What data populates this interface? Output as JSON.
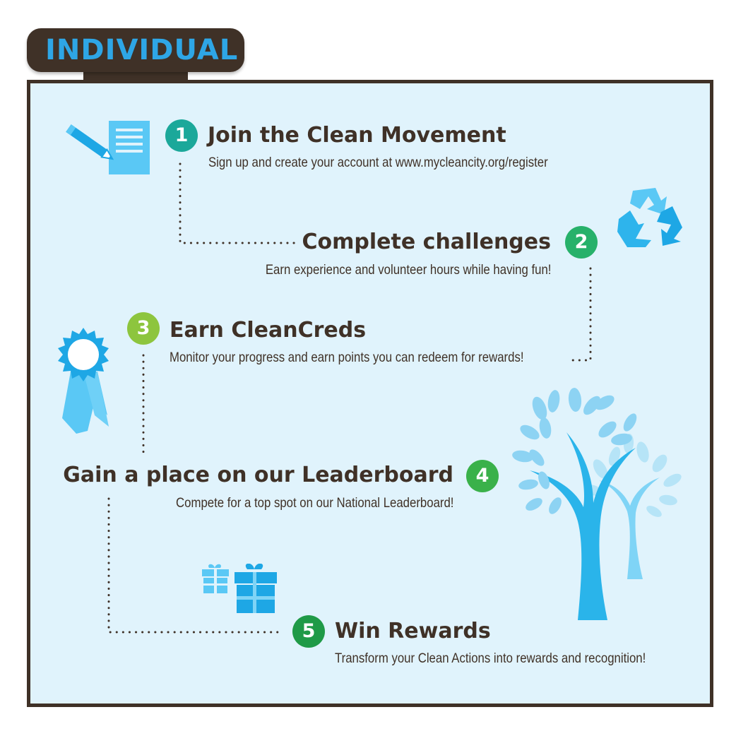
{
  "header": {
    "title": "INDIVIDUAL"
  },
  "colors": {
    "frame": "#3f3127",
    "panel": "#e0f3fc",
    "tab_text": "#2ea6e6",
    "icon_blue": "#5ac8f5",
    "icon_dark_blue": "#1ea7e5",
    "badge_1": "#1ba89a",
    "badge_2": "#27b16a",
    "badge_3": "#8dc53e",
    "badge_4": "#3ab14a",
    "badge_5": "#1f9a47"
  },
  "steps": [
    {
      "number": "1",
      "title": "Join the Clean Movement",
      "description": "Sign up and create your account at www.mycleancity.org/register",
      "icon": "document-pencil-icon"
    },
    {
      "number": "2",
      "title": "Complete challenges",
      "description": "Earn experience and volunteer hours while having fun!",
      "icon": "recycle-icon"
    },
    {
      "number": "3",
      "title": "Earn CleanCreds",
      "description": "Monitor your progress and earn points you can redeem for rewards!",
      "icon": "ribbon-award-icon"
    },
    {
      "number": "4",
      "title": "Gain a place on our Leaderboard",
      "description": "Compete for a top spot on our National Leaderboard!",
      "icon": "tree-icon"
    },
    {
      "number": "5",
      "title": "Win Rewards",
      "description": "Transform your Clean Actions into rewards and recognition!",
      "icon": "gift-icon"
    }
  ]
}
